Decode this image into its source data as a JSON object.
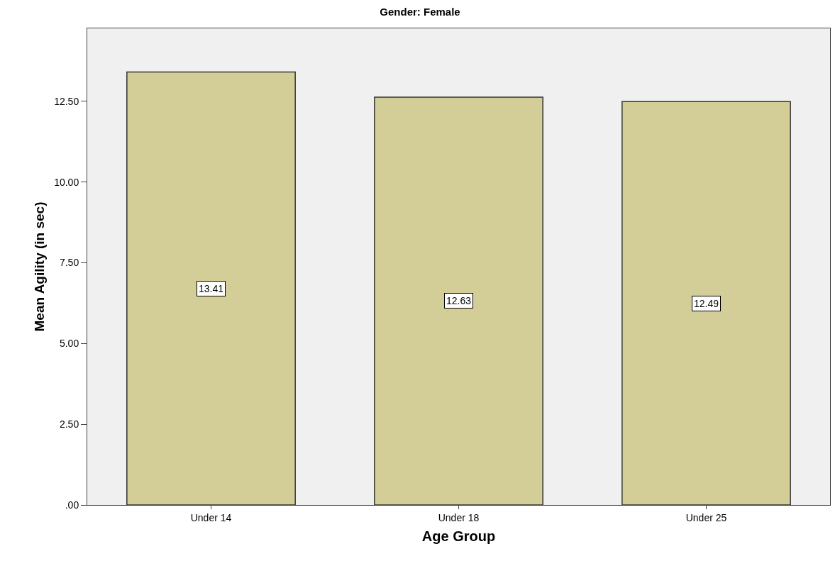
{
  "chart_data": {
    "type": "bar",
    "title": "Gender: Female",
    "xlabel": "Age Group",
    "ylabel": "Mean Agility (in sec)",
    "categories": [
      "Under 14",
      "Under 18",
      "Under 25"
    ],
    "values": [
      13.41,
      12.63,
      12.49
    ],
    "color": "#d3ce97",
    "ylim": [
      0,
      14.76
    ],
    "yticks": [
      {
        "value": 0,
        "label": ".00"
      },
      {
        "value": 2.5,
        "label": "2.50"
      },
      {
        "value": 5,
        "label": "5.00"
      },
      {
        "value": 7.5,
        "label": "7.50"
      },
      {
        "value": 10,
        "label": "10.00"
      },
      {
        "value": 12.5,
        "label": "12.50"
      }
    ],
    "data_labels": true,
    "grid": false,
    "legend": false
  }
}
